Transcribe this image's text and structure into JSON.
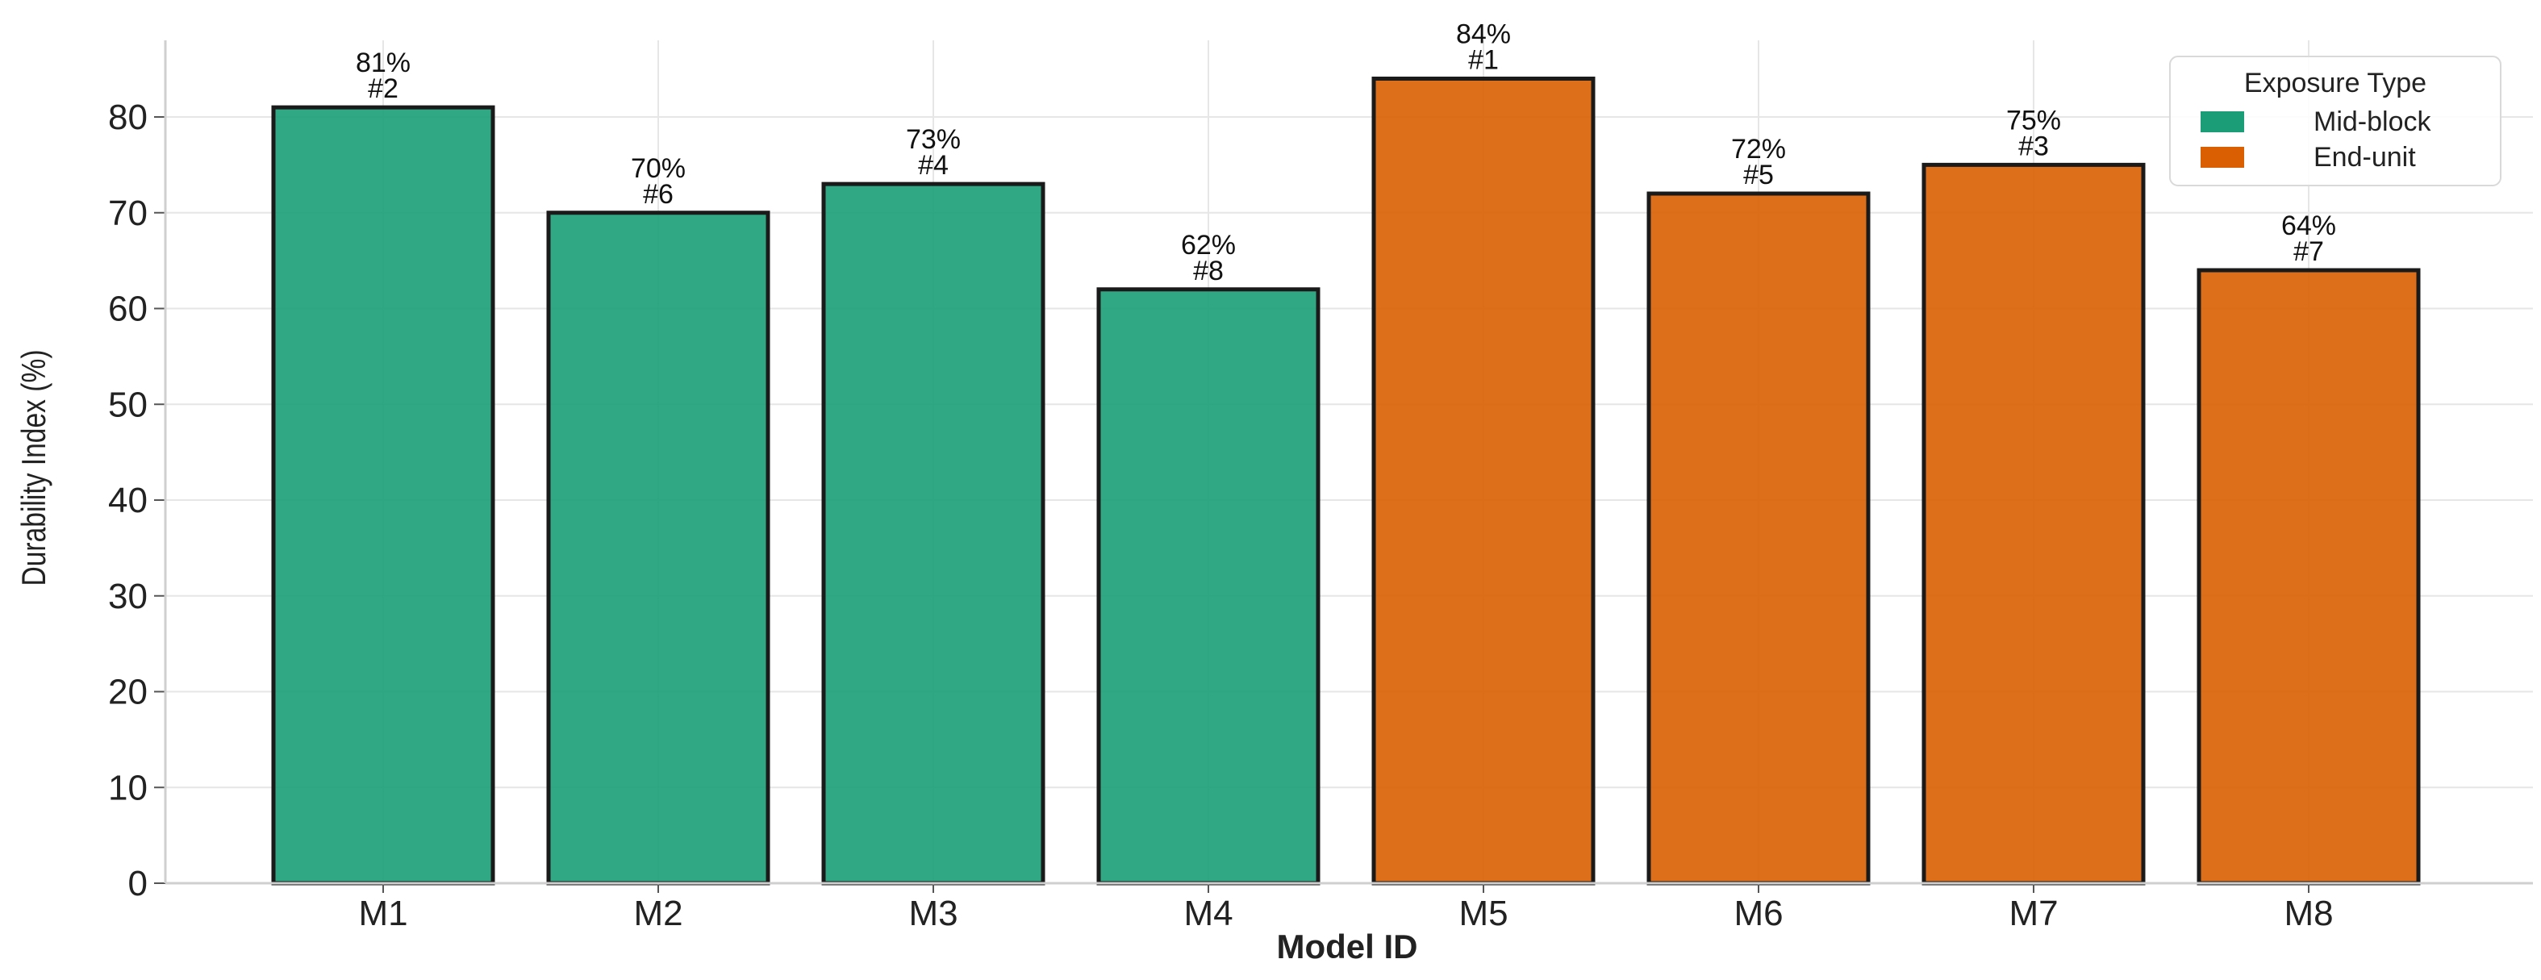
{
  "chart_data": {
    "type": "bar",
    "categories": [
      "M1",
      "M2",
      "M3",
      "M4",
      "M5",
      "M6",
      "M7",
      "M8"
    ],
    "values": [
      81,
      70,
      73,
      62,
      84,
      72,
      75,
      64
    ],
    "value_labels": [
      "81%",
      "70%",
      "73%",
      "62%",
      "84%",
      "72%",
      "75%",
      "64%"
    ],
    "rank_labels": [
      "#2",
      "#6",
      "#4",
      "#8",
      "#1",
      "#5",
      "#3",
      "#7"
    ],
    "groups": [
      "Mid-block",
      "Mid-block",
      "Mid-block",
      "Mid-block",
      "End-unit",
      "End-unit",
      "End-unit",
      "End-unit"
    ],
    "xlabel": "Model ID",
    "ylabel": "Durability Index (%)",
    "ylim": [
      0,
      88
    ],
    "yticks": [
      0,
      10,
      20,
      30,
      40,
      50,
      60,
      70,
      80
    ],
    "grid": true,
    "legend": {
      "title": "Exposure Type",
      "placement": "top-right",
      "entries": [
        {
          "name": "Mid-block",
          "color": "#1b9e77"
        },
        {
          "name": "End-unit",
          "color": "#d95f02"
        }
      ]
    },
    "colors": {
      "Mid-block": "#1b9e77",
      "End-unit": "#d95f02"
    }
  }
}
